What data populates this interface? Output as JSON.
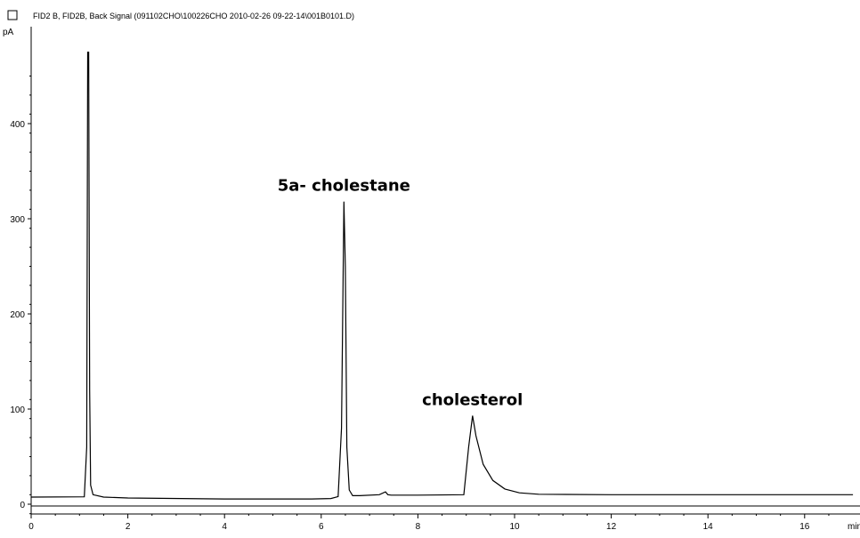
{
  "chart_data": {
    "type": "line",
    "title": "FID2 B, FID2B, Back Signal (091102CHO\\100226CHO 2010-02-26 09-22-14\\001B0101.D)",
    "ylabel": "pA",
    "xlabel": "min",
    "xlim": [
      0,
      17
    ],
    "ylim": [
      -10,
      475
    ],
    "xticks": [
      0,
      2,
      4,
      6,
      8,
      10,
      12,
      14,
      16
    ],
    "yticks": [
      0,
      100,
      200,
      300,
      400
    ],
    "grid": false,
    "legend": "none",
    "series": [
      {
        "x": [
          0,
          1.1,
          1.15,
          1.17,
          1.19,
          1.21,
          1.23,
          1.28,
          1.5,
          2.0,
          4.0,
          5.8,
          6.2,
          6.35,
          6.42,
          6.47,
          6.5,
          6.53,
          6.58,
          6.65,
          6.8,
          7.2,
          7.33,
          7.38,
          7.45,
          7.6,
          8.0,
          8.95,
          9.05,
          9.13,
          9.2,
          9.35,
          9.55,
          9.8,
          10.1,
          10.5,
          12.0,
          14.0,
          16.0,
          17.0
        ],
        "values": [
          7.5,
          7.8,
          60,
          475,
          475,
          120,
          20,
          10,
          7.5,
          6.5,
          5.5,
          5.5,
          6,
          8,
          80,
          318,
          250,
          60,
          15,
          9,
          9,
          10,
          13,
          10,
          9.5,
          9.5,
          9.5,
          10,
          60,
          93,
          72,
          42,
          25,
          16,
          12,
          10.5,
          10,
          10,
          10,
          10
        ]
      }
    ],
    "annotations": [
      {
        "text": "5a- cholestane",
        "x": 6.47,
        "y": 318
      },
      {
        "text": "cholesterol",
        "x": 9.13,
        "y": 93
      }
    ]
  }
}
